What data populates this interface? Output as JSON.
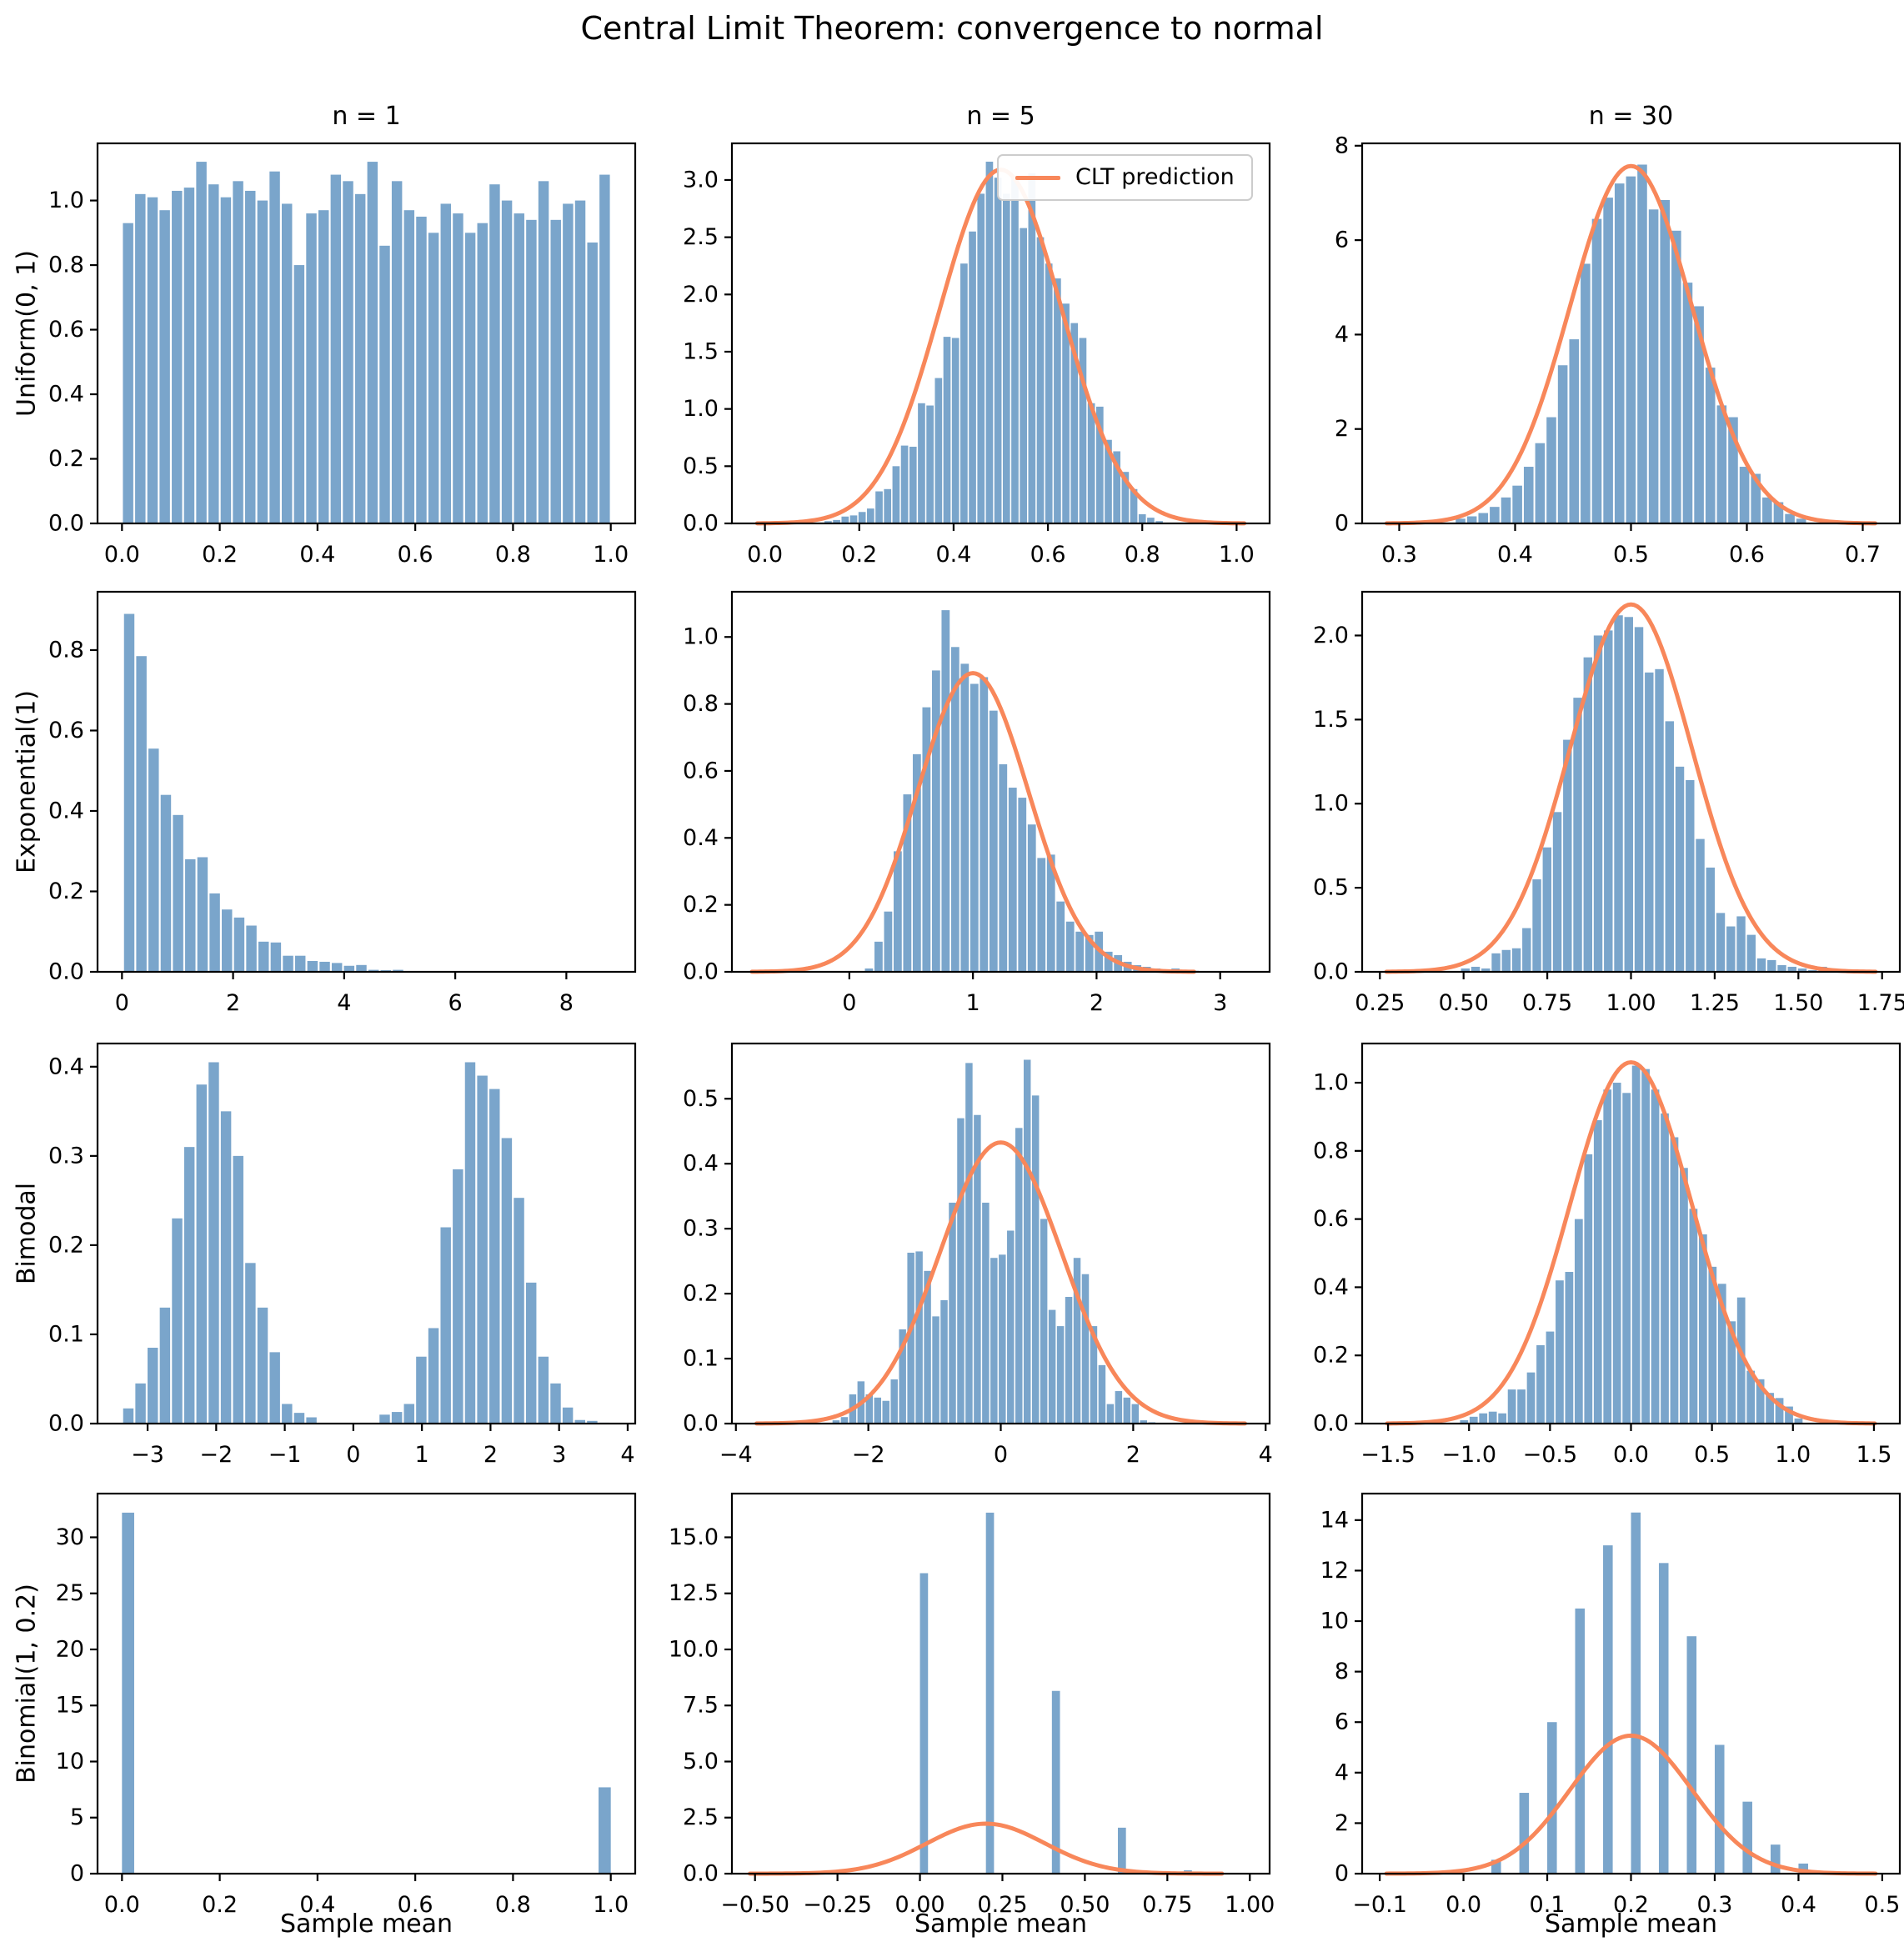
{
  "title": "Central Limit Theorem: convergence to normal",
  "xlabel": "Sample mean",
  "legend": {
    "label": "CLT prediction"
  },
  "columns": [
    "n = 1",
    "n = 5",
    "n = 30"
  ],
  "rows": [
    "Uniform(0, 1)",
    "Exponential(1)",
    "Bimodal",
    "Binomial(1, 0.2)"
  ],
  "colors": {
    "bar": "#7aa5cb",
    "curve": "#f8875a",
    "axis": "#000000",
    "background": "#ffffff",
    "legend_border": "#cccccc"
  },
  "chart_data": [
    {
      "id": "uniform-n1",
      "type": "bar",
      "row": 0,
      "col": 0,
      "distribution": "Uniform(0, 1)",
      "n": 1,
      "xlim": [
        -0.05,
        1.05
      ],
      "ylim": [
        0,
        1.177
      ],
      "xticks": {
        "vals": [
          0.0,
          0.2,
          0.4,
          0.6,
          0.8,
          1.0
        ],
        "labels": [
          "0.0",
          "0.2",
          "0.4",
          "0.6",
          "0.8",
          "1.0"
        ]
      },
      "yticks": {
        "vals": [
          0.0,
          0.2,
          0.4,
          0.6,
          0.8,
          1.0
        ],
        "labels": [
          "0.0",
          "0.2",
          "0.4",
          "0.6",
          "0.8",
          "1.0"
        ]
      },
      "bars": {
        "x0": 0.0,
        "w": 0.025,
        "frac": 0.85,
        "heights": [
          0.93,
          1.02,
          1.01,
          0.97,
          1.03,
          1.04,
          1.12,
          1.05,
          1.01,
          1.06,
          1.03,
          1.0,
          1.09,
          0.99,
          0.8,
          0.96,
          0.97,
          1.08,
          1.06,
          1.02,
          1.12,
          0.86,
          1.06,
          0.97,
          0.95,
          0.9,
          0.99,
          0.96,
          0.9,
          0.93,
          1.05,
          1.0,
          0.96,
          0.94,
          1.06,
          0.94,
          0.99,
          1.0,
          0.87,
          1.08
        ]
      },
      "curve": null,
      "show_legend": false,
      "show_xlabel": false
    },
    {
      "id": "uniform-n5",
      "type": "bar",
      "row": 0,
      "col": 1,
      "distribution": "Uniform(0, 1)",
      "n": 5,
      "xlim": [
        -0.07,
        1.07
      ],
      "ylim": [
        0,
        3.32
      ],
      "xticks": {
        "vals": [
          0.0,
          0.2,
          0.4,
          0.6,
          0.8,
          1.0
        ],
        "labels": [
          "0.0",
          "0.2",
          "0.4",
          "0.6",
          "0.8",
          "1.0"
        ]
      },
      "yticks": {
        "vals": [
          0.0,
          0.5,
          1.0,
          1.5,
          2.0,
          2.5,
          3.0
        ],
        "labels": [
          "0.0",
          "0.5",
          "1.0",
          "1.5",
          "2.0",
          "2.5",
          "3.0"
        ]
      },
      "bars": {
        "x0": 0.125,
        "w": 0.018,
        "frac": 0.85,
        "heights": [
          0.02,
          0.03,
          0.06,
          0.07,
          0.1,
          0.13,
          0.28,
          0.3,
          0.5,
          0.68,
          0.67,
          1.05,
          1.03,
          1.27,
          1.63,
          1.62,
          2.27,
          2.55,
          2.88,
          3.16,
          3.02,
          2.88,
          3.02,
          2.58,
          3.06,
          2.5,
          2.27,
          2.14,
          1.92,
          1.75,
          1.62,
          1.05,
          1.02,
          0.73,
          0.63,
          0.45,
          0.3,
          0.08,
          0.05,
          0.02
        ]
      },
      "curve": {
        "mu": 0.5,
        "sigma": 0.1291
      },
      "show_legend": true,
      "show_xlabel": false
    },
    {
      "id": "uniform-n30",
      "type": "bar",
      "row": 0,
      "col": 2,
      "distribution": "Uniform(0, 1)",
      "n": 30,
      "xlim": [
        0.268,
        0.732
      ],
      "ylim": [
        0,
        8.05
      ],
      "xticks": {
        "vals": [
          0.3,
          0.4,
          0.5,
          0.6,
          0.7
        ],
        "labels": [
          "0.3",
          "0.4",
          "0.5",
          "0.6",
          "0.7"
        ]
      },
      "yticks": {
        "vals": [
          0,
          2,
          4,
          6,
          8
        ],
        "labels": [
          "0",
          "2",
          "4",
          "6",
          "8"
        ]
      },
      "bars": {
        "x0": 0.348,
        "w": 0.0098,
        "frac": 0.85,
        "heights": [
          0.1,
          0.15,
          0.22,
          0.35,
          0.55,
          0.8,
          1.2,
          1.7,
          2.25,
          3.35,
          3.9,
          5.5,
          6.45,
          6.9,
          7.2,
          7.35,
          7.6,
          6.65,
          6.85,
          6.2,
          5.1,
          4.6,
          3.3,
          2.5,
          2.25,
          1.2,
          1.05,
          0.55,
          0.45,
          0.2,
          0.1
        ]
      },
      "curve": {
        "mu": 0.5,
        "sigma": 0.0527
      },
      "show_legend": false,
      "show_xlabel": false
    },
    {
      "id": "exponential-n1",
      "type": "bar",
      "row": 1,
      "col": 0,
      "distribution": "Exponential(1)",
      "n": 1,
      "xlim": [
        -0.44,
        9.24
      ],
      "ylim": [
        0,
        0.945
      ],
      "xticks": {
        "vals": [
          0,
          2,
          4,
          6,
          8
        ],
        "labels": [
          "0",
          "2",
          "4",
          "6",
          "8"
        ]
      },
      "yticks": {
        "vals": [
          0.0,
          0.2,
          0.4,
          0.6,
          0.8
        ],
        "labels": [
          "0.0",
          "0.2",
          "0.4",
          "0.6",
          "0.8"
        ]
      },
      "bars": {
        "x0": 0.02,
        "w": 0.22,
        "frac": 0.85,
        "heights": [
          0.89,
          0.785,
          0.555,
          0.44,
          0.39,
          0.28,
          0.285,
          0.195,
          0.155,
          0.135,
          0.115,
          0.075,
          0.073,
          0.04,
          0.04,
          0.027,
          0.025,
          0.022,
          0.015,
          0.017,
          0.005,
          0.004,
          0.005,
          0.002,
          0.001,
          0.002,
          0,
          0.001,
          0,
          0.001,
          0,
          0,
          0.001,
          0,
          0,
          0,
          0,
          0,
          0,
          0.001
        ]
      },
      "curve": null,
      "show_legend": false,
      "show_xlabel": false
    },
    {
      "id": "exponential-n5",
      "type": "bar",
      "row": 1,
      "col": 1,
      "distribution": "Exponential(1)",
      "n": 5,
      "xlim": [
        -0.95,
        3.4
      ],
      "ylim": [
        0,
        1.135
      ],
      "xticks": {
        "vals": [
          0,
          1,
          2,
          3
        ],
        "labels": [
          "0",
          "1",
          "2",
          "3"
        ]
      },
      "yticks": {
        "vals": [
          0.0,
          0.2,
          0.4,
          0.6,
          0.8,
          1.0
        ],
        "labels": [
          "0.0",
          "0.2",
          "0.4",
          "0.6",
          "0.8",
          "1.0"
        ]
      },
      "bars": {
        "x0": 0.12,
        "w": 0.0775,
        "frac": 0.85,
        "heights": [
          0.01,
          0.09,
          0.18,
          0.36,
          0.53,
          0.65,
          0.79,
          0.9,
          1.08,
          0.97,
          0.92,
          0.86,
          0.88,
          0.78,
          0.62,
          0.55,
          0.52,
          0.44,
          0.34,
          0.35,
          0.21,
          0.15,
          0.12,
          0.11,
          0.12,
          0.06,
          0.05,
          0.03,
          0.02,
          0.015,
          0.01,
          0.005,
          0.01,
          0.002,
          0.003,
          0.002,
          0.001,
          0.002,
          0.001,
          0.002
        ]
      },
      "curve": {
        "mu": 1.0,
        "sigma": 0.4472
      },
      "show_legend": false,
      "show_xlabel": false
    },
    {
      "id": "exponential-n30",
      "type": "bar",
      "row": 1,
      "col": 2,
      "distribution": "Exponential(1)",
      "n": 30,
      "xlim": [
        0.197,
        1.803
      ],
      "ylim": [
        0,
        2.26
      ],
      "xticks": {
        "vals": [
          0.25,
          0.5,
          0.75,
          1.0,
          1.25,
          1.5,
          1.75
        ],
        "labels": [
          "0.25",
          "0.50",
          "0.75",
          "1.00",
          "1.25",
          "1.50",
          "1.75"
        ]
      },
      "yticks": {
        "vals": [
          0.0,
          0.5,
          1.0,
          1.5,
          2.0
        ],
        "labels": [
          "0.0",
          "0.5",
          "1.0",
          "1.5",
          "2.0"
        ]
      },
      "bars": {
        "x0": 0.49,
        "w": 0.0305,
        "frac": 0.85,
        "heights": [
          0.02,
          0.03,
          0.02,
          0.11,
          0.13,
          0.14,
          0.26,
          0.55,
          0.74,
          0.95,
          1.38,
          1.63,
          1.87,
          2.0,
          2.03,
          2.12,
          2.11,
          2.05,
          1.78,
          1.8,
          1.49,
          1.22,
          1.14,
          0.79,
          0.62,
          0.35,
          0.27,
          0.33,
          0.22,
          0.08,
          0.07,
          0.04,
          0.03,
          0.02,
          0.01,
          0.03,
          0.02
        ]
      },
      "curve": {
        "mu": 1.0,
        "sigma": 0.1826
      },
      "show_legend": false,
      "show_xlabel": false
    },
    {
      "id": "bimodal-n1",
      "type": "bar",
      "row": 2,
      "col": 0,
      "distribution": "Bimodal",
      "n": 1,
      "xlim": [
        -3.73,
        4.11
      ],
      "ylim": [
        0,
        0.426
      ],
      "xticks": {
        "vals": [
          -3,
          -2,
          -1,
          0,
          1,
          2,
          3,
          4
        ],
        "labels": [
          "−3",
          "−2",
          "−1",
          "0",
          "1",
          "2",
          "3",
          "4"
        ]
      },
      "yticks": {
        "vals": [
          0.0,
          0.1,
          0.2,
          0.3,
          0.4
        ],
        "labels": [
          "0.0",
          "0.1",
          "0.2",
          "0.3",
          "0.4"
        ]
      },
      "bars": {
        "x0": -3.37,
        "w": 0.178,
        "frac": 0.85,
        "heights": [
          0.017,
          0.045,
          0.085,
          0.13,
          0.23,
          0.31,
          0.38,
          0.405,
          0.35,
          0.3,
          0.18,
          0.13,
          0.08,
          0.022,
          0.012,
          0.007,
          0,
          0,
          0,
          0,
          0,
          0.01,
          0.013,
          0.022,
          0.075,
          0.107,
          0.22,
          0.285,
          0.405,
          0.39,
          0.375,
          0.32,
          0.253,
          0.158,
          0.075,
          0.045,
          0.018,
          0.004,
          0.003,
          0.001
        ]
      },
      "curve": null,
      "show_legend": false,
      "show_xlabel": false
    },
    {
      "id": "bimodal-n5",
      "type": "bar",
      "row": 2,
      "col": 1,
      "distribution": "Bimodal",
      "n": 5,
      "xlim": [
        -4.06,
        4.06
      ],
      "ylim": [
        0,
        0.585
      ],
      "xticks": {
        "vals": [
          -4,
          -2,
          0,
          2,
          4
        ],
        "labels": [
          "−4",
          "−2",
          "0",
          "2",
          "4"
        ]
      },
      "yticks": {
        "vals": [
          0.0,
          0.1,
          0.2,
          0.3,
          0.4,
          0.5
        ],
        "labels": [
          "0.0",
          "0.1",
          "0.2",
          "0.3",
          "0.4",
          "0.5"
        ]
      },
      "bars": {
        "x0": -2.55,
        "w": 0.1255,
        "frac": 0.85,
        "heights": [
          0.005,
          0.01,
          0.045,
          0.065,
          0.045,
          0.04,
          0.035,
          0.068,
          0.145,
          0.263,
          0.265,
          0.235,
          0.165,
          0.19,
          0.34,
          0.47,
          0.555,
          0.475,
          0.34,
          0.255,
          0.26,
          0.297,
          0.455,
          0.56,
          0.505,
          0.315,
          0.175,
          0.15,
          0.195,
          0.255,
          0.23,
          0.15,
          0.09,
          0.03,
          0.05,
          0.04,
          0.03,
          0.005,
          0.002,
          0.001
        ]
      },
      "curve": {
        "mu": 0.0,
        "sigma": 0.922
      },
      "show_legend": false,
      "show_xlabel": false
    },
    {
      "id": "bimodal-n30",
      "type": "bar",
      "row": 2,
      "col": 2,
      "distribution": "Bimodal",
      "n": 30,
      "xlim": [
        -1.66,
        1.66
      ],
      "ylim": [
        0,
        1.115
      ],
      "xticks": {
        "vals": [
          -1.5,
          -1.0,
          -0.5,
          0.0,
          0.5,
          1.0,
          1.5
        ],
        "labels": [
          "−1.5",
          "−1.0",
          "−0.5",
          "0.0",
          "0.5",
          "1.0",
          "1.5"
        ]
      },
      "yticks": {
        "vals": [
          0.0,
          0.2,
          0.4,
          0.6,
          0.8,
          1.0
        ],
        "labels": [
          "0.0",
          "0.2",
          "0.4",
          "0.6",
          "0.8",
          "1.0"
        ]
      },
      "bars": {
        "x0": -1.06,
        "w": 0.059,
        "frac": 0.85,
        "heights": [
          0.01,
          0.02,
          0.03,
          0.035,
          0.03,
          0.1,
          0.1,
          0.15,
          0.23,
          0.27,
          0.42,
          0.445,
          0.6,
          0.79,
          0.89,
          0.98,
          1.0,
          0.97,
          1.05,
          1.04,
          0.98,
          0.91,
          0.84,
          0.75,
          0.63,
          0.555,
          0.46,
          0.41,
          0.3,
          0.37,
          0.155,
          0.13,
          0.09,
          0.075,
          0.05,
          0.015
        ]
      },
      "curve": {
        "mu": 0.0,
        "sigma": 0.3764
      },
      "show_legend": false,
      "show_xlabel": false
    },
    {
      "id": "binomial-n1",
      "type": "bar",
      "row": 3,
      "col": 0,
      "distribution": "Binomial(1, 0.2)",
      "n": 1,
      "xlim": [
        -0.05,
        1.05
      ],
      "ylim": [
        0,
        33.9
      ],
      "xticks": {
        "vals": [
          0.0,
          0.2,
          0.4,
          0.6,
          0.8,
          1.0
        ],
        "labels": [
          "0.0",
          "0.2",
          "0.4",
          "0.6",
          "0.8",
          "1.0"
        ]
      },
      "yticks": {
        "vals": [
          0,
          5,
          10,
          15,
          20,
          25,
          30
        ],
        "labels": [
          "0",
          "5",
          "10",
          "15",
          "20",
          "25",
          "30"
        ]
      },
      "bars": {
        "w": 0.025,
        "frac": 1,
        "items": [
          [
            0.0,
            32.2
          ],
          [
            0.975,
            7.7
          ]
        ]
      },
      "curve": null,
      "show_legend": false,
      "show_xlabel": true
    },
    {
      "id": "binomial-n5",
      "type": "bar",
      "row": 3,
      "col": 1,
      "distribution": "Binomial(1, 0.2)",
      "n": 5,
      "xlim": [
        -0.57,
        1.06
      ],
      "ylim": [
        0,
        16.95
      ],
      "xticks": {
        "vals": [
          -0.5,
          -0.25,
          0.0,
          0.25,
          0.5,
          0.75,
          1.0
        ],
        "labels": [
          "−0.50",
          "−0.25",
          "0.00",
          "0.25",
          "0.50",
          "0.75",
          "1.00"
        ]
      },
      "yticks": {
        "vals": [
          0.0,
          2.5,
          5.0,
          7.5,
          10.0,
          12.5,
          15.0
        ],
        "labels": [
          "0.0",
          "2.5",
          "5.0",
          "7.5",
          "10.0",
          "12.5",
          "15.0"
        ]
      },
      "bars": {
        "w": 0.0245,
        "frac": 1,
        "items": [
          [
            0.0,
            13.4
          ],
          [
            0.2,
            16.1
          ],
          [
            0.4,
            8.15
          ],
          [
            0.6,
            2.05
          ],
          [
            0.8,
            0.15
          ]
        ]
      },
      "curve": {
        "mu": 0.2,
        "sigma": 0.1789
      },
      "show_legend": false,
      "show_xlabel": true
    },
    {
      "id": "binomial-n30",
      "type": "bar",
      "row": 3,
      "col": 2,
      "distribution": "Binomial(1, 0.2)",
      "n": 30,
      "xlim": [
        -0.121,
        0.521
      ],
      "ylim": [
        0,
        15.05
      ],
      "xticks": {
        "vals": [
          -0.1,
          0.0,
          0.1,
          0.2,
          0.3,
          0.4,
          0.5
        ],
        "labels": [
          "−0.1",
          "0.0",
          "0.1",
          "0.2",
          "0.3",
          "0.4",
          "0.5"
        ]
      },
      "yticks": {
        "vals": [
          0,
          2,
          4,
          6,
          8,
          10,
          12,
          14
        ],
        "labels": [
          "0",
          "2",
          "4",
          "6",
          "8",
          "10",
          "12",
          "14"
        ]
      },
      "bars": {
        "w": 0.0115,
        "frac": 1,
        "items": [
          [
            0.0333,
            0.55
          ],
          [
            0.0667,
            3.2
          ],
          [
            0.1,
            6.0
          ],
          [
            0.1333,
            10.5
          ],
          [
            0.1667,
            13.0
          ],
          [
            0.2,
            14.3
          ],
          [
            0.2333,
            12.3
          ],
          [
            0.2667,
            9.4
          ],
          [
            0.3,
            5.1
          ],
          [
            0.3333,
            2.85
          ],
          [
            0.3667,
            1.15
          ],
          [
            0.4,
            0.4
          ],
          [
            0.4333,
            0.1
          ]
        ]
      },
      "curve": {
        "mu": 0.2,
        "sigma": 0.073
      },
      "show_legend": false,
      "show_xlabel": true
    }
  ]
}
